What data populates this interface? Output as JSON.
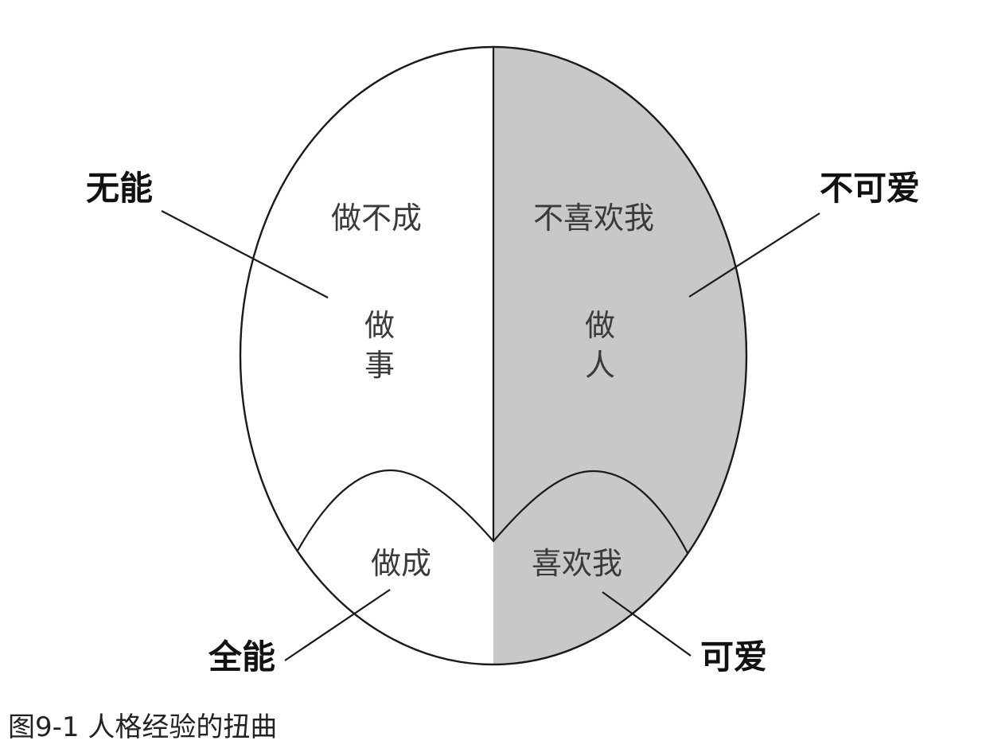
{
  "diagram": {
    "left_region": {
      "top_label": "做不成",
      "center_label_line1": "做",
      "center_label_line2": "事",
      "bottom_label": "做成"
    },
    "right_region": {
      "top_label": "不喜欢我",
      "center_label_line1": "做",
      "center_label_line2": "人",
      "bottom_label": "喜欢我"
    },
    "callouts": {
      "top_left": "无能",
      "top_right": "不可爱",
      "bottom_left": "全能",
      "bottom_right": "可爱"
    },
    "colors": {
      "right_fill": "#c7c8ca",
      "left_fill": "#ffffff",
      "stroke": "#1a1a1a"
    }
  },
  "caption": "图9-1 人格经验的扭曲"
}
